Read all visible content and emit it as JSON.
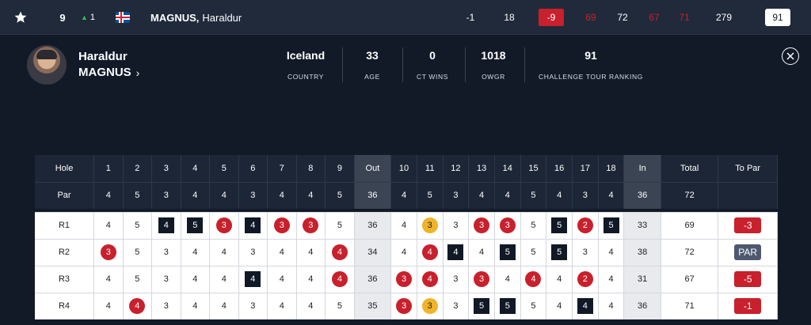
{
  "leaderboard_row": {
    "position": "9",
    "movement": "1",
    "player_name_last": "MAGNUS,",
    "player_name_first": "Haraldur",
    "thru": "-1",
    "holes": "18",
    "total_to_par": "-9",
    "r1": "69",
    "r2": "72",
    "r3": "67",
    "r4": "71",
    "total": "279",
    "rank": "91"
  },
  "profile": {
    "first_name": "Haraldur",
    "last_name": "MAGNUS",
    "stats": [
      {
        "value": "Iceland",
        "label": "COUNTRY"
      },
      {
        "value": "33",
        "label": "AGE"
      },
      {
        "value": "0",
        "label": "CT WINS"
      },
      {
        "value": "1018",
        "label": "OWGR"
      },
      {
        "value": "91",
        "label": "CHALLENGE TOUR RANKING"
      }
    ]
  },
  "scorecard": {
    "hole_label": "Hole",
    "par_label": "Par",
    "out_label": "Out",
    "in_label": "In",
    "total_label": "Total",
    "topar_label": "To Par",
    "holes": [
      "1",
      "2",
      "3",
      "4",
      "5",
      "6",
      "7",
      "8",
      "9",
      "10",
      "11",
      "12",
      "13",
      "14",
      "15",
      "16",
      "17",
      "18"
    ],
    "par": [
      "4",
      "5",
      "3",
      "4",
      "4",
      "3",
      "4",
      "4",
      "5",
      "4",
      "5",
      "3",
      "4",
      "4",
      "5",
      "4",
      "3",
      "4"
    ],
    "par_out": "36",
    "par_in": "36",
    "par_total": "72",
    "rounds": [
      {
        "label": "R1",
        "scores": [
          "4",
          "5",
          "4",
          "5",
          "3",
          "4",
          "3",
          "3",
          "5",
          "4",
          "3",
          "3",
          "3",
          "3",
          "5",
          "5",
          "2",
          "5"
        ],
        "out": "36",
        "in": "33",
        "total": "69",
        "to_par": "-3"
      },
      {
        "label": "R2",
        "scores": [
          "3",
          "5",
          "3",
          "4",
          "4",
          "3",
          "4",
          "4",
          "4",
          "4",
          "4",
          "4",
          "4",
          "5",
          "5",
          "5",
          "3",
          "4"
        ],
        "out": "34",
        "in": "38",
        "total": "72",
        "to_par": "PAR"
      },
      {
        "label": "R3",
        "scores": [
          "4",
          "5",
          "3",
          "4",
          "4",
          "4",
          "4",
          "4",
          "4",
          "3",
          "4",
          "3",
          "3",
          "4",
          "4",
          "4",
          "2",
          "4"
        ],
        "out": "36",
        "in": "31",
        "total": "67",
        "to_par": "-5"
      },
      {
        "label": "R4",
        "scores": [
          "4",
          "4",
          "3",
          "4",
          "4",
          "3",
          "4",
          "4",
          "5",
          "3",
          "3",
          "3",
          "5",
          "5",
          "5",
          "4",
          "4",
          "4"
        ],
        "out": "35",
        "in": "36",
        "total": "71",
        "to_par": "-1"
      }
    ]
  }
}
